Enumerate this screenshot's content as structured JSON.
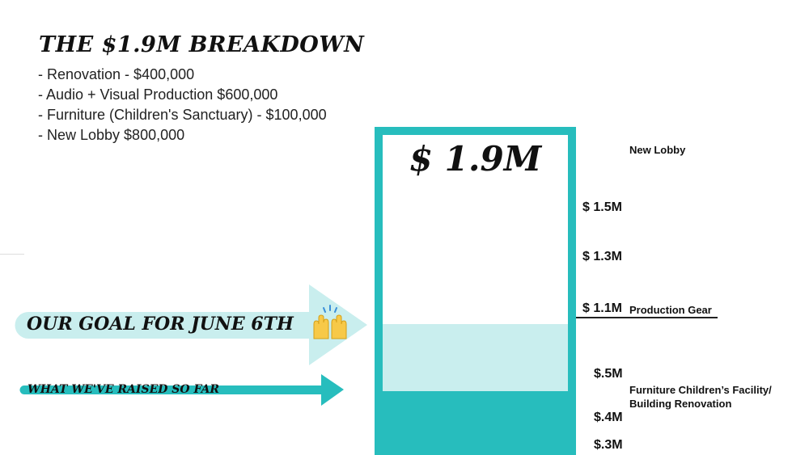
{
  "title": "THE $1.9M BREAKDOWN",
  "breakdown": [
    "- Renovation - $400,000",
    "- Audio + Visual Production $600,000",
    "- Furniture (Children's Sanctuary) - $100,000",
    "- New Lobby $800,000"
  ],
  "thermometer": {
    "total_label": "$ 1.9M",
    "goal_fraction": 0.41,
    "raised_fraction": 0.2
  },
  "scale_labels": [
    "$ 1.5M",
    "$ 1.3M",
    "$ 1.1M",
    "$.5M",
    "$.4M",
    "$.3M"
  ],
  "category_labels": {
    "new_lobby": "New Lobby",
    "production_gear": "Production Gear",
    "furniture_line1": "Furniture Children’s Facility/",
    "furniture_line2": "Building Renovation"
  },
  "arrows": {
    "goal_label": "OUR GOAL FOR JUNE 6TH",
    "raised_label": "WHAT WE'VE RAISED SO FAR",
    "goal_color": "#c9eeee",
    "raised_color": "#27bdbd"
  },
  "emoji_icon": "raising-hands-icon"
}
